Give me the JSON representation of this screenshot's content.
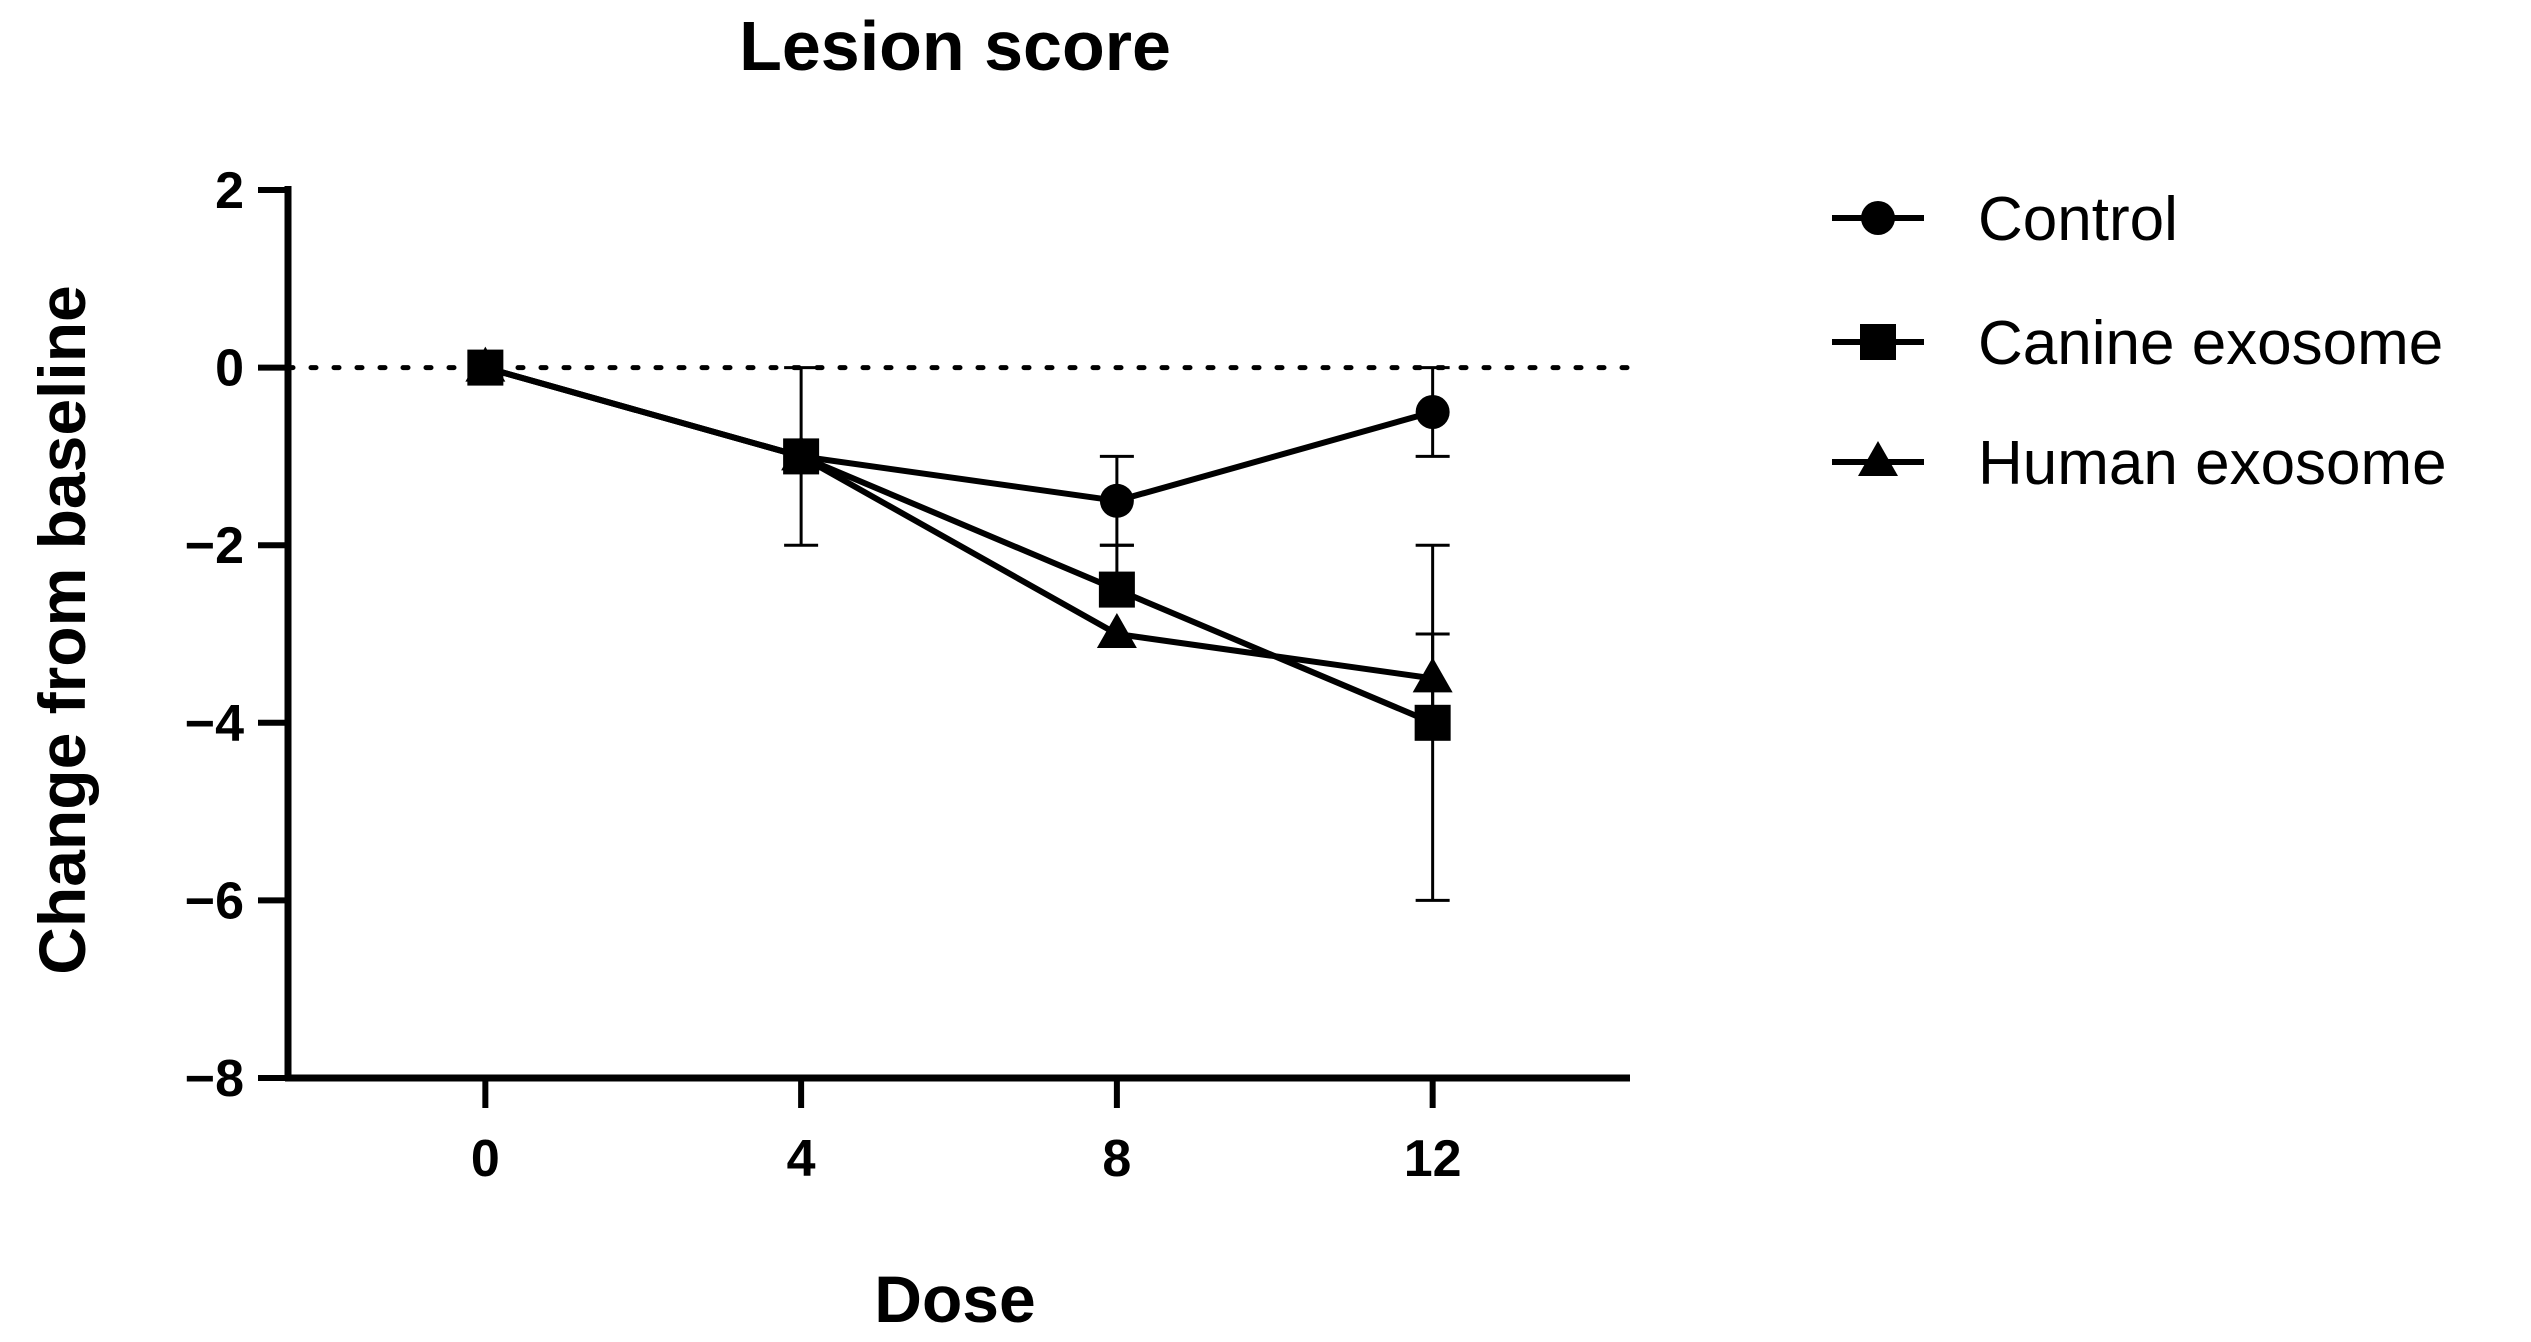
{
  "chart_data": {
    "type": "line",
    "title": "Lesion score",
    "xlabel": "Dose",
    "ylabel": "Change from baseline",
    "xlim": [
      -2.5,
      14.5
    ],
    "ylim": [
      -8,
      2
    ],
    "x_ticks": [
      0,
      4,
      8,
      12
    ],
    "y_ticks": [
      2,
      0,
      -2,
      -4,
      -6,
      -8
    ],
    "y_tick_labels": [
      "2",
      "0",
      "−2",
      "−4",
      "−6",
      "−8"
    ],
    "reference_line": 0,
    "legend_position": "right",
    "series": [
      {
        "name": "Control",
        "marker": "circle",
        "x": [
          0,
          4,
          8,
          12
        ],
        "y": [
          0,
          -1,
          -1.5,
          -0.5
        ],
        "err_low": [
          0,
          -2,
          -2,
          -1
        ],
        "err_high": [
          0,
          0,
          -1,
          0
        ]
      },
      {
        "name": "Canine exosome",
        "marker": "square",
        "x": [
          0,
          4,
          8,
          12
        ],
        "y": [
          0,
          -1,
          -2.5,
          -4
        ],
        "err_low": [
          0,
          -1,
          -2.5,
          -6
        ],
        "err_high": [
          0,
          -1,
          -2,
          -3
        ]
      },
      {
        "name": "Human exosome",
        "marker": "triangle",
        "x": [
          0,
          4,
          8,
          12
        ],
        "y": [
          0,
          -1,
          -3,
          -3.5
        ],
        "err_low": [
          0,
          -1,
          -3,
          -4
        ],
        "err_high": [
          0,
          -1,
          -3,
          -2
        ]
      }
    ]
  }
}
